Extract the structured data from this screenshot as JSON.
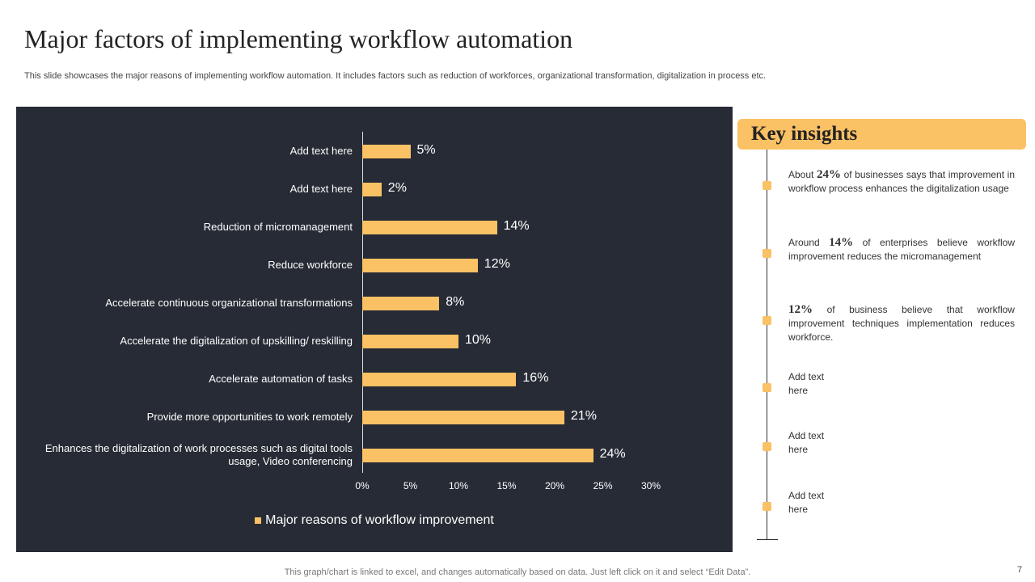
{
  "title": "Major factors of implementing workflow automation",
  "subtitle": "This slide showcases the major reasons of implementing workflow automation. It includes factors such as reduction of workforces, organizational transformation, digitalization in process etc.",
  "chart_data": {
    "type": "bar",
    "orientation": "horizontal",
    "categories": [
      "Add text here",
      "Add text here",
      "Reduction of micromanagement",
      "Reduce workforce",
      "Accelerate continuous organizational transformations",
      "Accelerate the digitalization of upskilling/ reskilling",
      "Accelerate automation of tasks",
      "Provide more opportunities to work remotely",
      "Enhances the digitalization of work processes such as digital tools usage, Video conferencing"
    ],
    "series": [
      {
        "name": "Major reasons of workflow improvement",
        "color": "#fbc165",
        "values": [
          5,
          2,
          14,
          12,
          8,
          10,
          16,
          21,
          24
        ],
        "value_labels": [
          "5%",
          "2%",
          "14%",
          "12%",
          "8%",
          "10%",
          "16%",
          "21%",
          "24%"
        ]
      }
    ],
    "xlim": [
      0,
      30
    ],
    "xticks": [
      {
        "value": 0,
        "label": "0%"
      },
      {
        "value": 5,
        "label": "5%"
      },
      {
        "value": 10,
        "label": "10%"
      },
      {
        "value": 15,
        "label": "15%"
      },
      {
        "value": 20,
        "label": "20%"
      },
      {
        "value": 25,
        "label": "25%"
      },
      {
        "value": 30,
        "label": "30%"
      }
    ],
    "legend": "bottom",
    "grid": false
  },
  "insights": {
    "title": "Key insights",
    "items": [
      {
        "lead": "About",
        "highlight": "24%",
        "text": "of businesses says that improvement in workflow process enhances the digitalization usage"
      },
      {
        "lead": "Around",
        "highlight": "14%",
        "text": "of enterprises believe workflow improvement reduces the micromanagement"
      },
      {
        "highlight": "12%",
        "text": "of business believe that workflow improvement techniques implementation reduces workforce."
      },
      {
        "text": "Add text here"
      },
      {
        "text": "Add text here"
      },
      {
        "text": "Add text here"
      }
    ]
  },
  "footer": "This graph/chart is linked to excel, and changes automatically based on data. Just left click on it and select “Edit Data”.",
  "page_number": "7"
}
